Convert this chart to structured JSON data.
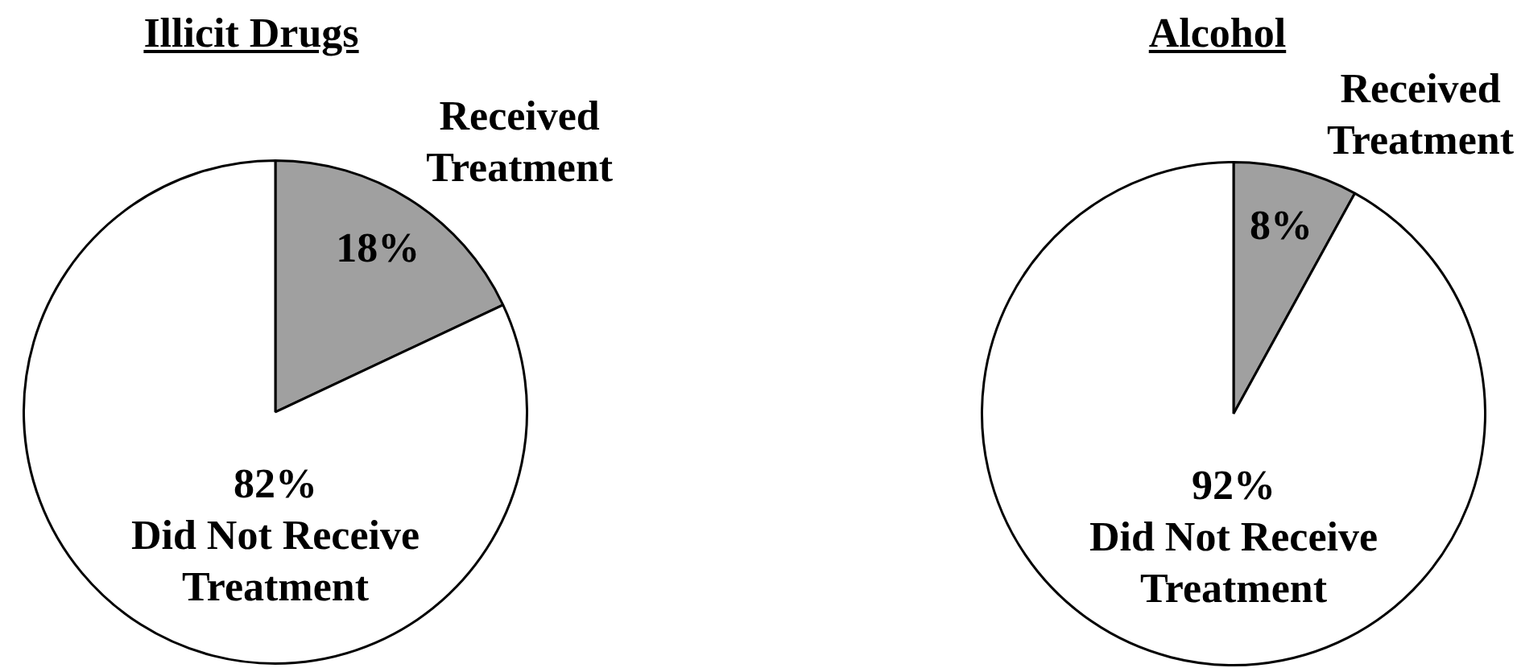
{
  "chart_data": [
    {
      "type": "pie",
      "title": "Illicit Drugs",
      "categories": [
        "Received Treatment",
        "Did Not Receive Treatment"
      ],
      "values": [
        18,
        82
      ],
      "colors": [
        "#a0a0a0",
        "#ffffff"
      ],
      "value_labels": [
        "18%",
        "82%"
      ]
    },
    {
      "type": "pie",
      "title": "Alcohol",
      "categories": [
        "Received Treatment",
        "Did Not Receive Treatment"
      ],
      "values": [
        8,
        92
      ],
      "colors": [
        "#a0a0a0",
        "#ffffff"
      ],
      "value_labels": [
        "8%",
        "92%"
      ]
    }
  ]
}
